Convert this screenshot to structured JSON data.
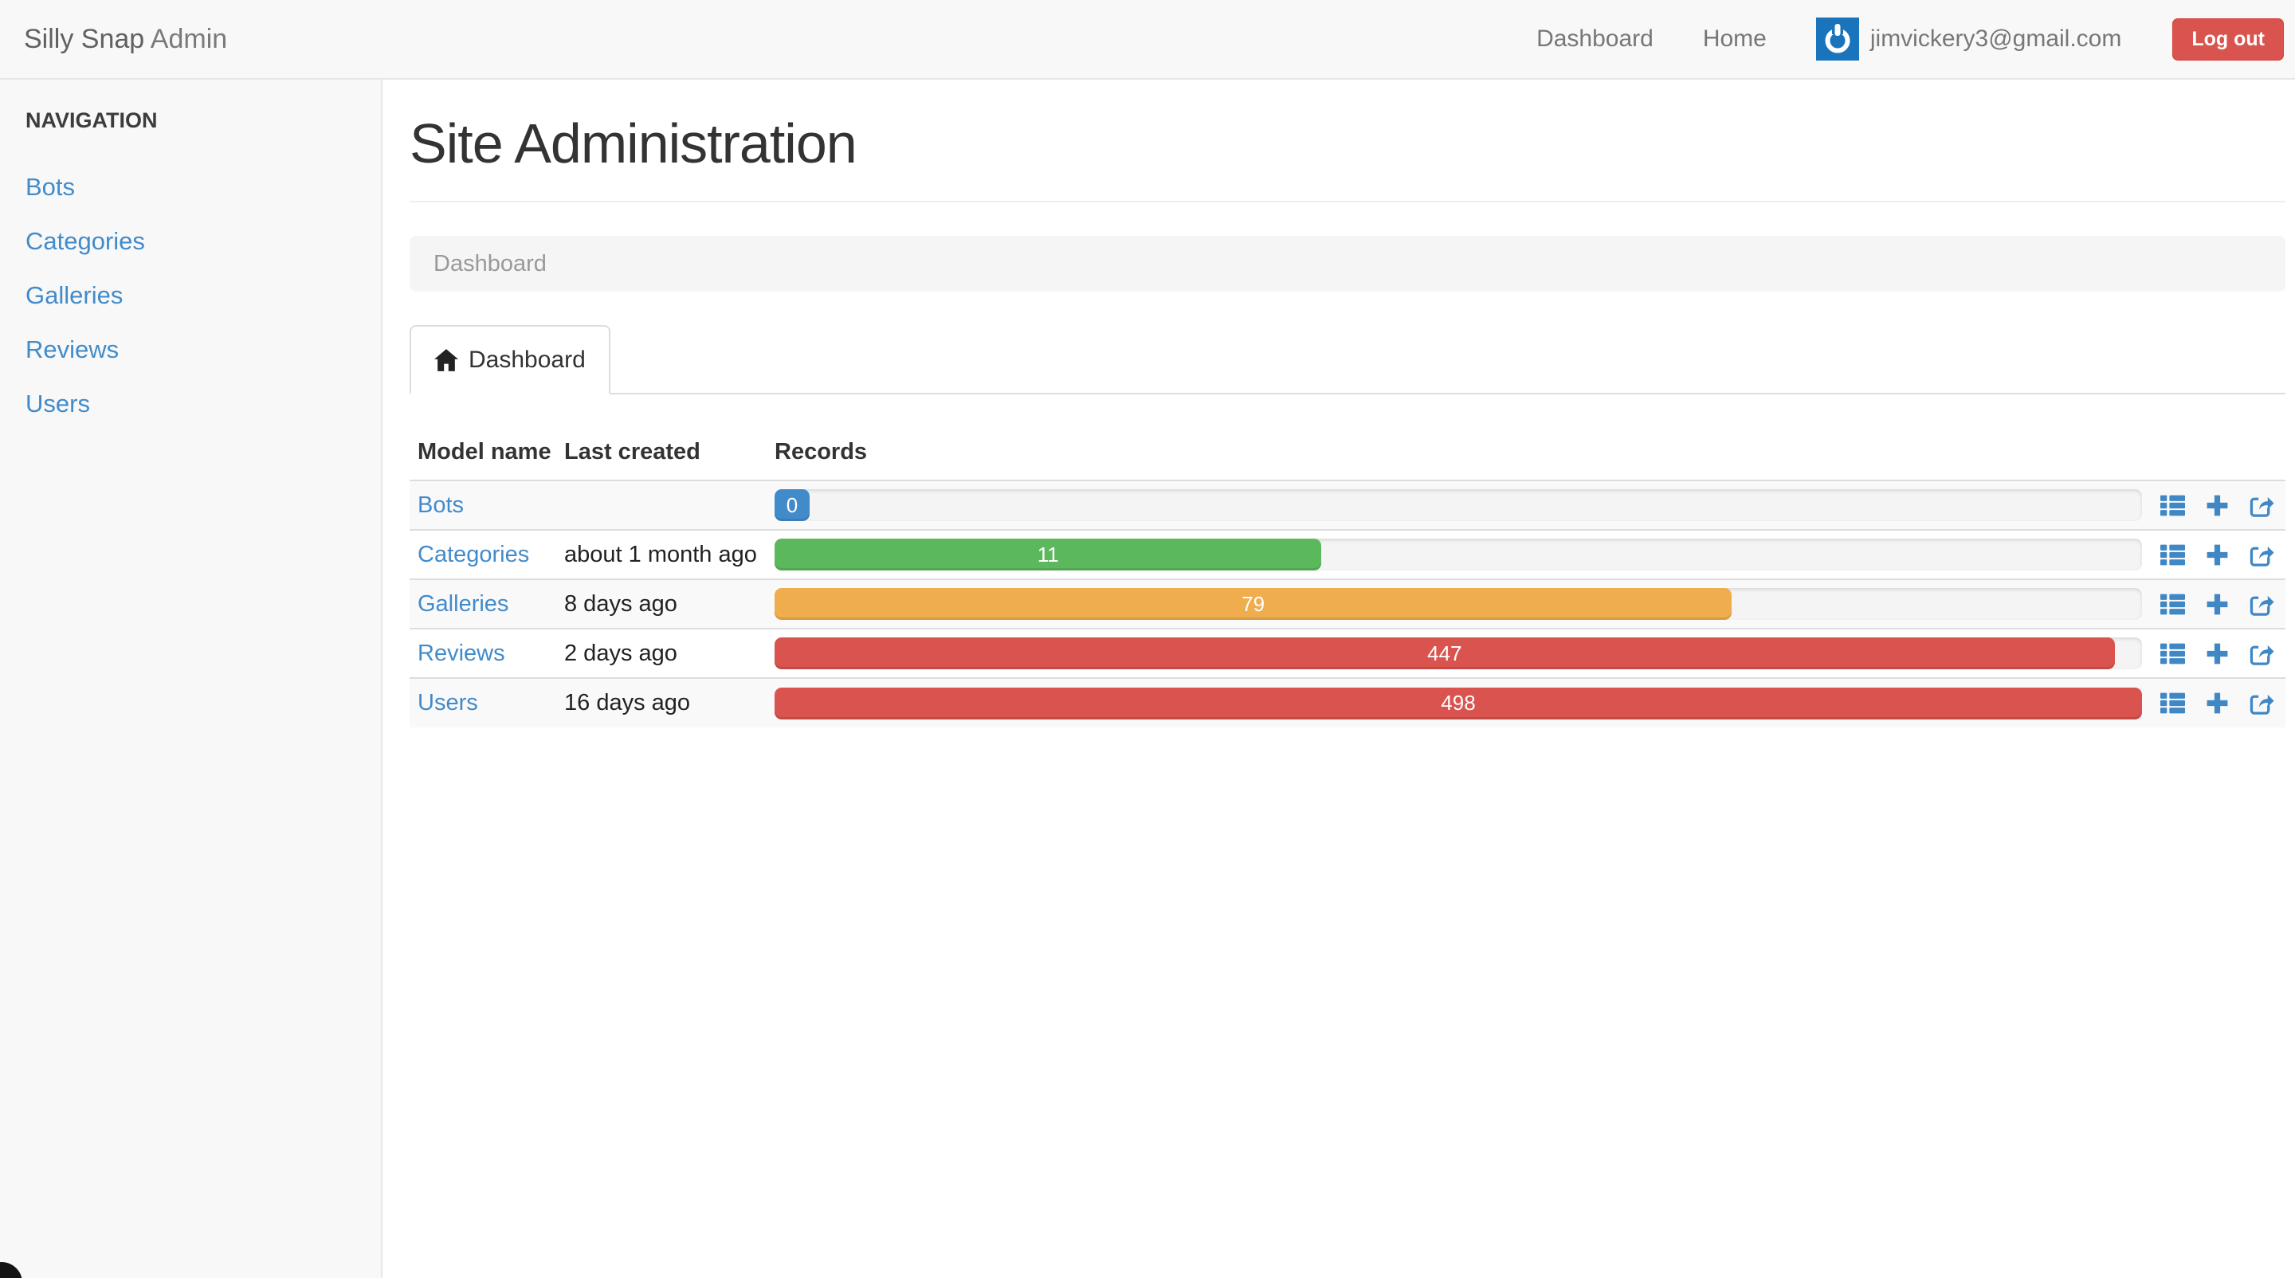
{
  "brand": {
    "name": "Silly Snap",
    "suffix": "Admin"
  },
  "topnav": {
    "items": [
      {
        "label": "Dashboard"
      },
      {
        "label": "Home"
      }
    ],
    "avatar_icon": "power-icon",
    "user_email": "jimvickery3@gmail.com",
    "logout_label": "Log out"
  },
  "sidebar": {
    "header": "NAVIGATION",
    "items": [
      {
        "label": "Bots"
      },
      {
        "label": "Categories"
      },
      {
        "label": "Galleries"
      },
      {
        "label": "Reviews"
      },
      {
        "label": "Users"
      }
    ]
  },
  "main": {
    "title": "Site Administration",
    "breadcrumb": {
      "items": [
        "Dashboard"
      ]
    },
    "tabs": [
      {
        "label": "Dashboard",
        "icon": "home-icon",
        "active": true
      }
    ],
    "table": {
      "columns": [
        "Model name",
        "Last created",
        "Records"
      ],
      "rows": [
        {
          "model": "Bots",
          "last_created": "",
          "records": 0,
          "bar_percent": 0,
          "bar_color": "#428bca"
        },
        {
          "model": "Categories",
          "last_created": "about 1 month ago",
          "records": 11,
          "bar_percent": 40,
          "bar_color": "#5cb85c"
        },
        {
          "model": "Galleries",
          "last_created": "8 days ago",
          "records": 79,
          "bar_percent": 70,
          "bar_color": "#f0ad4e"
        },
        {
          "model": "Reviews",
          "last_created": "2 days ago",
          "records": 447,
          "bar_percent": 98,
          "bar_color": "#d9534f"
        },
        {
          "model": "Users",
          "last_created": "16 days ago",
          "records": 498,
          "bar_percent": 100,
          "bar_color": "#d9534f"
        }
      ],
      "row_actions": [
        "list-icon",
        "add-icon",
        "export-icon"
      ]
    }
  },
  "colors": {
    "accent_blue": "#428bca",
    "success_green": "#5cb85c",
    "warning_orange": "#f0ad4e",
    "danger_red": "#d9534f",
    "navbar_bg": "#f8f8f8",
    "stripe_bg": "#f9f9f9"
  }
}
